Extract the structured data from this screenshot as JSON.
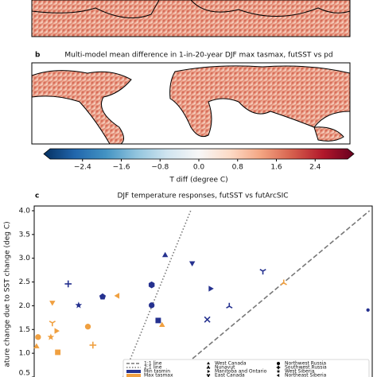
{
  "chart_data": [
    {
      "type": "colorbar",
      "label": "b",
      "title": "Multi-model mean difference in 1-in-20-year DJF max tasmax, futSST vs pd",
      "xlabel": "T diff (degree C)",
      "xlim": [
        -3.2,
        3.2
      ],
      "xticks": [
        {
          "value": -2.4,
          "label": "−2.4"
        },
        {
          "value": -1.6,
          "label": "−1.6"
        },
        {
          "value": -0.8,
          "label": "−0.8"
        },
        {
          "value": 0,
          "label": "0.0"
        },
        0.8,
        1.6,
        2.4
      ],
      "colormap": [
        "#053061",
        "#2166ac",
        "#4393c3",
        "#92c5de",
        "#d1e5f0",
        "#f7f7f7",
        "#fddbc7",
        "#f4a582",
        "#d6604d",
        "#b2182b",
        "#67001f"
      ]
    },
    {
      "type": "scatter",
      "label": "c",
      "title": "DJF temperature responses, futSST vs futArcSIC",
      "ylabel": "ature change due to SST change (deg C)",
      "xlim": [
        -2.05,
        6.7
      ],
      "ylim": [
        0.5,
        4.1
      ],
      "yticks": [
        0.5,
        {
          "value": 1.0,
          "label": "1.0"
        },
        1.5,
        {
          "value": 2.0,
          "label": "2.0"
        },
        2.5,
        {
          "value": 3.0,
          "label": "3.0"
        },
        3.5,
        {
          "value": 4.0,
          "label": "4.0"
        }
      ],
      "lines": [
        {
          "name": "1:1 line",
          "style": "dashed",
          "color": "#777777",
          "x": [
            1.48,
            6.63
          ],
          "values": [
            0.5,
            4.0
          ]
        },
        {
          "name": "2:1 line",
          "style": "dotted",
          "color": "#777777",
          "x": [
            0.25,
            2.0
          ],
          "values": [
            0.5,
            4.0
          ]
        }
      ],
      "series": [
        {
          "name": "Min tasmin",
          "color": "#25318f",
          "x": [
            1.34,
            2.04,
            -1.17,
            -0.9,
            -0.28,
            0.99,
            0.99,
            2.51,
            1.16,
            2.43,
            3.0,
            3.87,
            6.59
          ],
          "values": [
            3.06,
            2.9,
            2.46,
            2.01,
            2.19,
            2.44,
            2.01,
            2.36,
            1.69,
            1.71,
            1.99,
            2.73,
            1.91
          ],
          "markers": [
            "triangle-up",
            "triangle-down",
            "plus",
            "star",
            "pentagon",
            "hexagon",
            "circle",
            "triangle-right",
            "square",
            "x",
            "tri-up",
            "tri-down",
            "dot"
          ]
        },
        {
          "name": "Max tasmax",
          "color": "#f0a040",
          "x": [
            -1.58,
            0.11,
            -1.58,
            -1.48,
            4.41,
            1.26,
            -0.66,
            -1.62,
            -1.44,
            -1.95,
            -0.53,
            -1.99
          ],
          "values": [
            2.07,
            2.21,
            1.64,
            1.47,
            2.48,
            1.59,
            1.56,
            1.34,
            1.02,
            1.34,
            1.17,
            1.14
          ],
          "markers": [
            "triangle-down",
            "triangle-left",
            "tri-down",
            "triangle-right",
            "tri-up",
            "triangle-up",
            "circle",
            "star",
            "square",
            "circle",
            "plus",
            "triangle-up"
          ]
        }
      ],
      "regions": [
        {
          "name": "West Canada",
          "marker": "triangle-up"
        },
        {
          "name": "Nunavut",
          "marker": "tri-up"
        },
        {
          "name": "Manitoba and Ontario",
          "marker": "triangle-right"
        },
        {
          "name": "East Canada",
          "marker": "tri-down"
        },
        {
          "name": "Northwest Russia",
          "marker": "hexagon"
        },
        {
          "name": "Southwest Russia",
          "marker": "plus"
        },
        {
          "name": "West Siberia",
          "marker": "star"
        },
        {
          "name": "Northeast Siberia",
          "marker": "triangle-left"
        }
      ]
    }
  ]
}
